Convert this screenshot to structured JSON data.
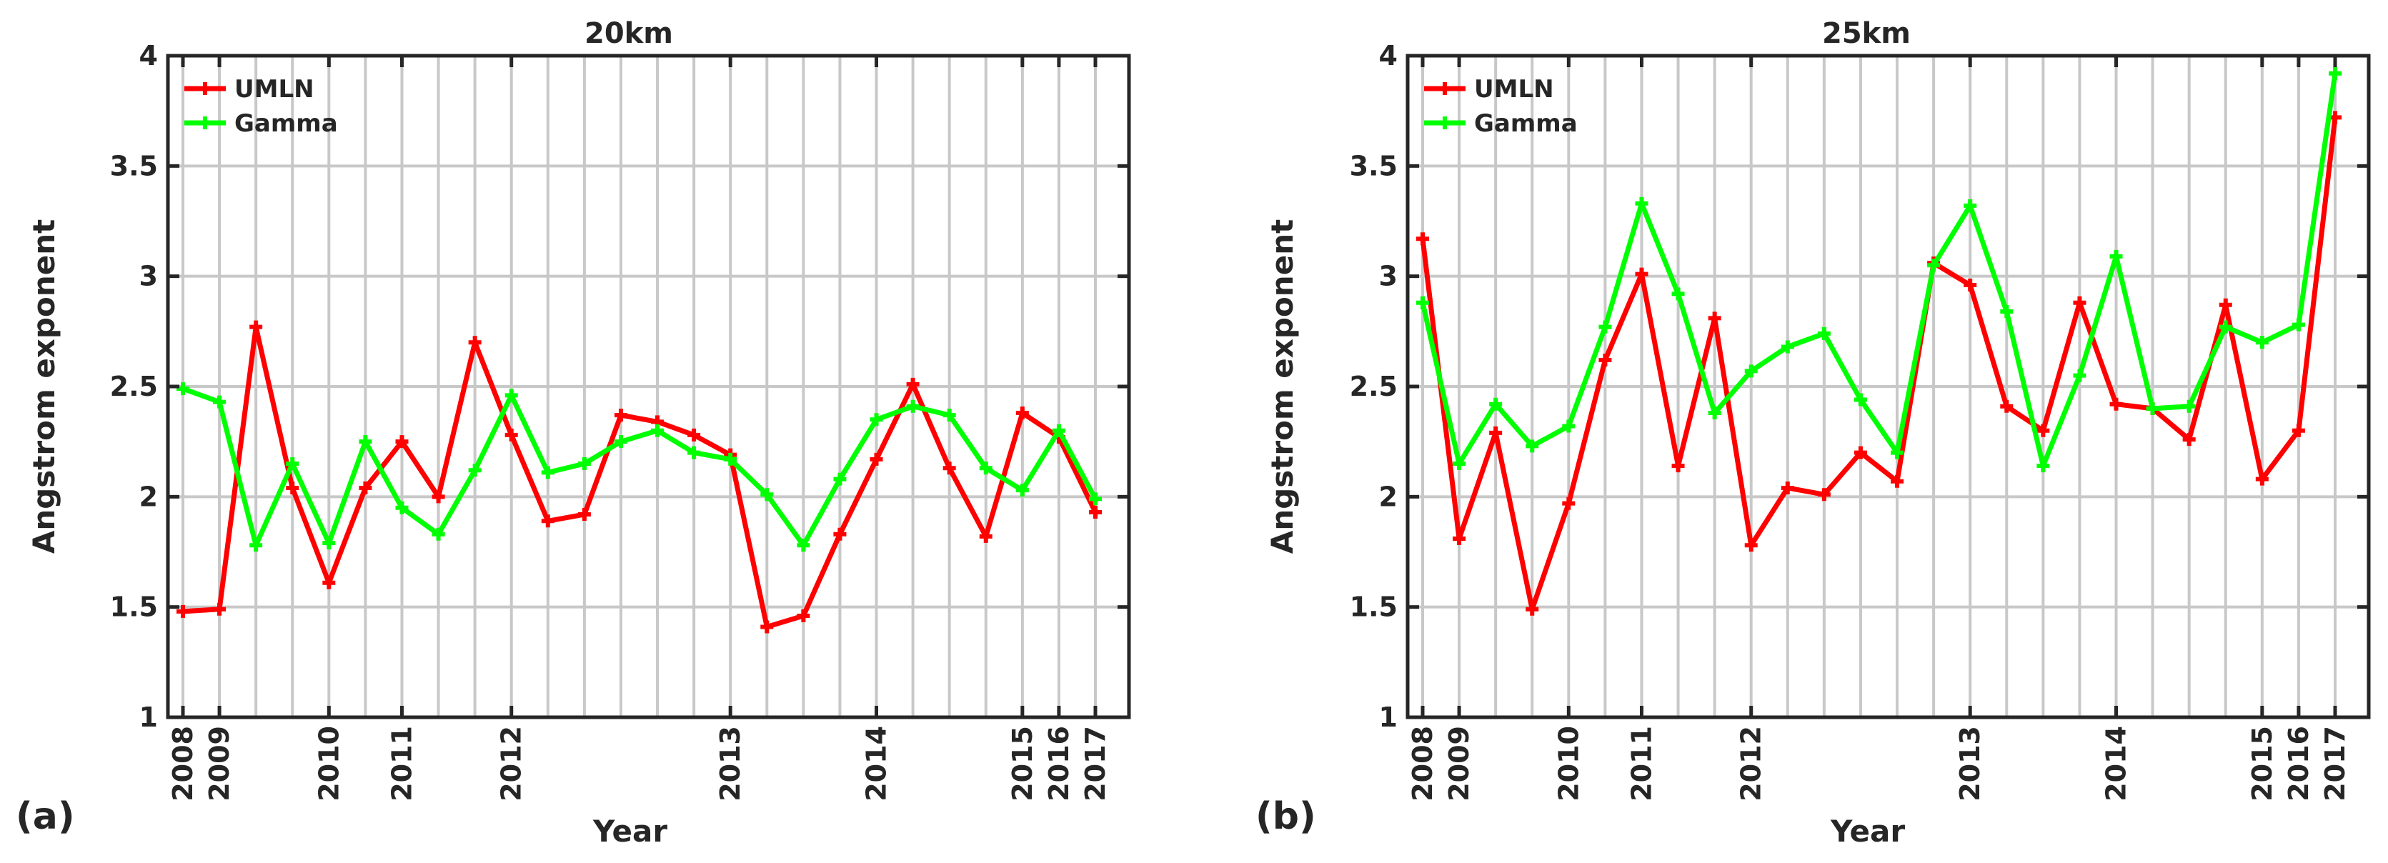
{
  "chart_data": [
    {
      "type": "line",
      "panel_label": "(a)",
      "title": "20km",
      "xlabel": "Year",
      "ylabel": "Angstrom exponent",
      "ylim": [
        1,
        4
      ],
      "yticks": [
        1,
        1.5,
        2,
        2.5,
        3,
        3.5,
        4
      ],
      "ytick_labels": [
        "1",
        "1.5",
        "2",
        "2.5",
        "3",
        "3.5",
        "4"
      ],
      "grid": true,
      "legend_position": "top-left",
      "x": [
        1,
        2,
        3,
        4,
        5,
        6,
        7,
        8,
        9,
        10,
        11,
        12,
        13,
        14,
        15,
        16,
        17,
        18,
        19,
        20,
        21,
        22,
        23,
        24,
        25,
        26
      ],
      "xtick_labels": [
        {
          "index": 1,
          "label": "2008"
        },
        {
          "index": 2,
          "label": "2009"
        },
        {
          "index": 5,
          "label": "2010"
        },
        {
          "index": 7,
          "label": "2011"
        },
        {
          "index": 10,
          "label": "2012"
        },
        {
          "index": 16,
          "label": "2013"
        },
        {
          "index": 20,
          "label": "2014"
        },
        {
          "index": 24,
          "label": "2015"
        },
        {
          "index": 25,
          "label": "2016"
        },
        {
          "index": 26,
          "label": "2017"
        }
      ],
      "series": [
        {
          "name": "UMLN",
          "color": "#ff0000",
          "values": [
            1.48,
            1.49,
            2.77,
            2.04,
            1.61,
            2.04,
            2.25,
            2.0,
            2.7,
            2.28,
            1.89,
            1.92,
            2.37,
            2.34,
            2.28,
            2.19,
            1.41,
            1.46,
            1.83,
            2.17,
            2.51,
            2.13,
            1.82,
            2.38,
            2.27,
            1.93
          ]
        },
        {
          "name": "Gamma",
          "color": "#00ff00",
          "values": [
            2.49,
            2.43,
            1.78,
            2.15,
            1.79,
            2.25,
            1.95,
            1.83,
            2.12,
            2.46,
            2.11,
            2.15,
            2.25,
            2.3,
            2.2,
            2.17,
            2.01,
            1.78,
            2.08,
            2.35,
            2.41,
            2.37,
            2.13,
            2.03,
            2.3,
            1.99
          ]
        }
      ]
    },
    {
      "type": "line",
      "panel_label": "(b)",
      "title": "25km",
      "xlabel": "Year",
      "ylabel": "Angstrom exponent",
      "ylim": [
        1,
        4
      ],
      "yticks": [
        1,
        1.5,
        2,
        2.5,
        3,
        3.5,
        4
      ],
      "ytick_labels": [
        "1",
        "1.5",
        "2",
        "2.5",
        "3",
        "3.5",
        "4"
      ],
      "grid": true,
      "legend_position": "top-left",
      "x": [
        1,
        2,
        3,
        4,
        5,
        6,
        7,
        8,
        9,
        10,
        11,
        12,
        13,
        14,
        15,
        16,
        17,
        18,
        19,
        20,
        21,
        22,
        23,
        24,
        25,
        26
      ],
      "xtick_labels": [
        {
          "index": 1,
          "label": "2008"
        },
        {
          "index": 2,
          "label": "2009"
        },
        {
          "index": 5,
          "label": "2010"
        },
        {
          "index": 7,
          "label": "2011"
        },
        {
          "index": 10,
          "label": "2012"
        },
        {
          "index": 16,
          "label": "2013"
        },
        {
          "index": 20,
          "label": "2014"
        },
        {
          "index": 24,
          "label": "2015"
        },
        {
          "index": 25,
          "label": "2016"
        },
        {
          "index": 26,
          "label": "2017"
        }
      ],
      "series": [
        {
          "name": "UMLN",
          "color": "#ff0000",
          "values": [
            3.17,
            1.81,
            2.29,
            1.49,
            1.97,
            2.62,
            3.01,
            2.14,
            2.81,
            1.78,
            2.04,
            2.01,
            2.2,
            2.07,
            3.06,
            2.96,
            2.41,
            2.3,
            2.88,
            2.42,
            2.4,
            2.26,
            2.87,
            2.08,
            2.3,
            3.72
          ]
        },
        {
          "name": "Gamma",
          "color": "#00ff00",
          "values": [
            2.88,
            2.15,
            2.42,
            2.23,
            2.32,
            2.77,
            3.33,
            2.92,
            2.38,
            2.57,
            2.68,
            2.74,
            2.44,
            2.2,
            3.05,
            3.32,
            2.84,
            2.14,
            2.55,
            3.09,
            2.4,
            2.41,
            2.77,
            2.7,
            2.78,
            3.92
          ]
        }
      ]
    }
  ]
}
